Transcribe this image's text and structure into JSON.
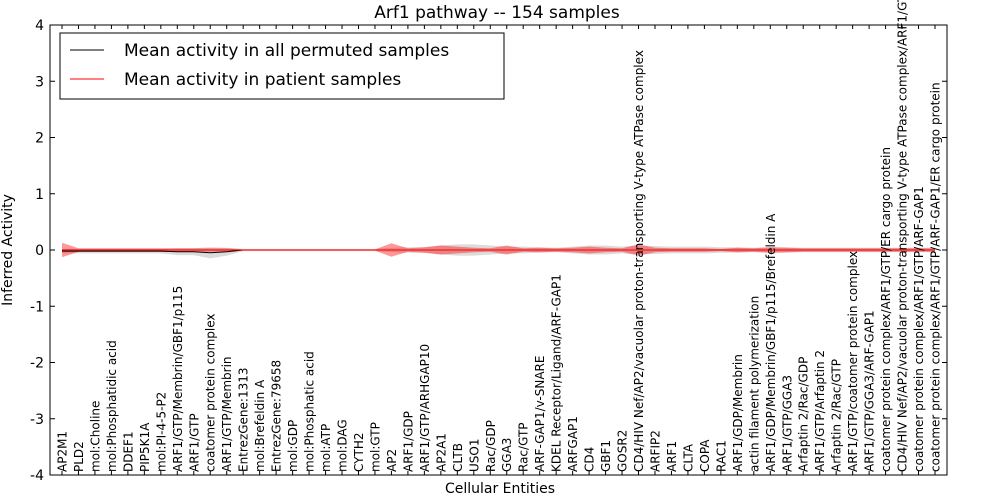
{
  "chart_data": {
    "type": "line",
    "title": "Arf1 pathway -- 154 samples",
    "xlabel": "Cellular Entities",
    "ylabel": "Inferred Activity",
    "ylim": [
      -4,
      4
    ],
    "yticks": [
      -4,
      -3,
      -2,
      -1,
      0,
      1,
      2,
      3,
      4
    ],
    "legend_position": "top-left",
    "categories": [
      "AP2M1",
      "PLD2",
      "mol:Choline",
      "mol:Phosphatidic acid",
      "DDEF1",
      "PIP5K1A",
      "mol:PI-4-5-P2",
      "ARF1/GTP/Membrin/GBF1/p115",
      "ARF1/GTP",
      "coatomer protein complex",
      "ARF1/GTP/Membrin",
      "EntrezGene:1313",
      "mol:Brefeldin A",
      "EntrezGene:79658",
      "mol:GDP",
      "mol:Phosphatic acid",
      "mol:ATP",
      "mol:DAG",
      "CYTH2",
      "mol:GTP",
      "AP2",
      "ARF1/GDP",
      "ARF1/GTP/ARHGAP10",
      "AP2A1",
      "CLTB",
      "USO1",
      "Rac/GDP",
      "GGA3",
      "Rac/GTP",
      "ARF-GAP1/v-SNARE",
      "KDEL Receptor/Ligand/ARF-GAP1",
      "ARFGAP1",
      "CD4",
      "GBF1",
      "GOSR2",
      "CD4/HIV Nef/AP2/vacuolar proton-transporting V-type ATPase complex",
      "ARFIP2",
      "ARF1",
      "CLTA",
      "COPA",
      "RAC1",
      "ARF1/GDP/Membrin",
      "actin filament polymerization",
      "ARF1/GDP/Membrin/GBF1/p115/Brefeldin A",
      "ARF1/GTP/GGA3",
      "Arfaptin 2/Rac/GDP",
      "ARF1/GTP/Arfaptin 2",
      "Arfaptin 2/Rac/GTP",
      "ARF1/GTP/coatomer protein complex",
      "ARF1/GTP/GGA3/ARF-GAP1",
      "coatomer protein complex/ARF1/GTP/ER cargo protein",
      "CD4/HIV Nef/AP2/vacuolar proton-transporting V-type ATPase complex/ARF1/GTP/ARF-GAP1",
      "coatomer protein complex/ARF1/GTP/ARF-GAP1",
      "coatomer protein complex/ARF1/GTP/ARF-GAP1/ER cargo protein"
    ],
    "series": [
      {
        "name": "Mean activity in all permuted samples",
        "color": "#000000",
        "values": [
          -0.02,
          -0.02,
          -0.02,
          -0.02,
          -0.02,
          -0.02,
          -0.02,
          -0.03,
          -0.03,
          -0.05,
          -0.03,
          0,
          0,
          0,
          0,
          0,
          0,
          0,
          0,
          0,
          0,
          0,
          0,
          0,
          0,
          0,
          0,
          0,
          0,
          0,
          0,
          0,
          0,
          0,
          0,
          0,
          0,
          0,
          0,
          0,
          0,
          0,
          0,
          0,
          0,
          0,
          0,
          0,
          0,
          0,
          0,
          0,
          0,
          0
        ],
        "band": [
          0.04,
          0.04,
          0.04,
          0.04,
          0.04,
          0.04,
          0.04,
          0.06,
          0.06,
          0.1,
          0.07,
          0.02,
          0.02,
          0.02,
          0.02,
          0.02,
          0.02,
          0.02,
          0.02,
          0.02,
          0.04,
          0.05,
          0.05,
          0.08,
          0.1,
          0.1,
          0.08,
          0.06,
          0.06,
          0.05,
          0.04,
          0.06,
          0.08,
          0.08,
          0.06,
          0.08,
          0.07,
          0.06,
          0.06,
          0.06,
          0.05,
          0.05,
          0.04,
          0.05,
          0.05,
          0.04,
          0.04,
          0.04,
          0.04,
          0.04,
          0.04,
          0.04,
          0.04,
          0.04
        ]
      },
      {
        "name": "Mean activity in patient samples",
        "color": "#ff0000",
        "values": [
          0,
          0,
          0,
          0,
          0,
          0,
          0,
          0,
          0,
          0,
          0,
          0,
          0,
          0,
          0,
          0,
          0,
          0,
          0,
          0,
          0,
          0,
          0,
          0,
          0,
          0,
          0,
          0,
          0,
          0,
          0,
          0,
          0,
          0,
          0,
          0,
          0,
          0,
          0,
          0,
          0,
          0,
          0,
          0,
          0,
          0,
          0,
          0,
          0,
          0,
          0,
          0,
          0,
          0
        ],
        "band": [
          0.13,
          0.03,
          0.03,
          0.03,
          0.03,
          0.03,
          0.03,
          0.03,
          0.03,
          0.03,
          0.03,
          0.01,
          0.01,
          0.01,
          0.01,
          0.01,
          0.01,
          0.01,
          0.01,
          0.01,
          0.12,
          0.03,
          0.05,
          0.08,
          0.06,
          0.04,
          0.03,
          0.08,
          0.03,
          0.04,
          0.03,
          0.04,
          0.06,
          0.04,
          0.03,
          0.1,
          0.04,
          0.03,
          0.03,
          0.03,
          0.02,
          0.04,
          0.03,
          0.05,
          0.04,
          0.03,
          0.03,
          0.03,
          0.03,
          0.03,
          0.03,
          0.03,
          0.03,
          0.03
        ]
      }
    ]
  }
}
